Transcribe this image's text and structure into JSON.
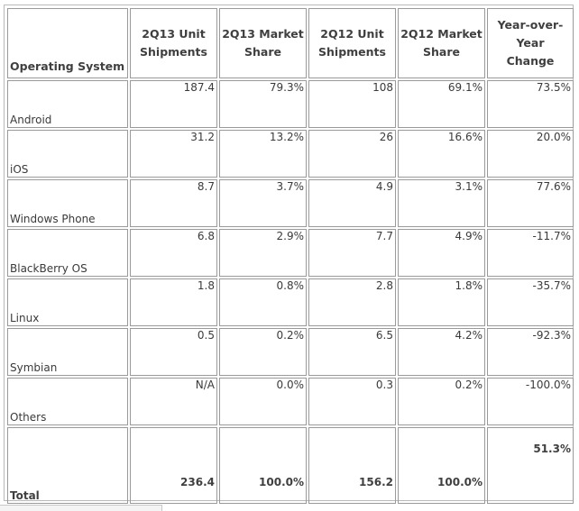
{
  "table": {
    "headers": {
      "os": "Operating System",
      "q2_2013_shipments": [
        "2Q13 Unit",
        "Shipments"
      ],
      "q2_2013_share": [
        "2Q13 Market",
        "Share"
      ],
      "q2_2012_shipments": [
        "2Q12 Unit",
        "Shipments"
      ],
      "q2_2012_share": [
        "2Q12 Market",
        "Share"
      ],
      "yoy_change": [
        "Year-over-Year",
        "Change"
      ]
    },
    "rows": [
      {
        "os": "Android",
        "s13": "187.4",
        "m13": "79.3%",
        "s12": "108",
        "m12": "69.1%",
        "yoy": "73.5%"
      },
      {
        "os": "iOS",
        "s13": "31.2",
        "m13": "13.2%",
        "s12": "26",
        "m12": "16.6%",
        "yoy": "20.0%"
      },
      {
        "os": "Windows Phone",
        "s13": "8.7",
        "m13": "3.7%",
        "s12": "4.9",
        "m12": "3.1%",
        "yoy": "77.6%"
      },
      {
        "os": "BlackBerry OS",
        "s13": "6.8",
        "m13": "2.9%",
        "s12": "7.7",
        "m12": "4.9%",
        "yoy": "-11.7%"
      },
      {
        "os": "Linux",
        "s13": "1.8",
        "m13": "0.8%",
        "s12": "2.8",
        "m12": "1.8%",
        "yoy": "-35.7%"
      },
      {
        "os": "Symbian",
        "s13": "0.5",
        "m13": "0.2%",
        "s12": "6.5",
        "m12": "4.2%",
        "yoy": "-92.3%"
      },
      {
        "os": "Others",
        "s13": "N/A",
        "m13": "0.0%",
        "s12": "0.3",
        "m12": "0.2%",
        "yoy": "-100.0%"
      }
    ],
    "total": {
      "os": "Total",
      "s13": "236.4",
      "m13": "100.0%",
      "s12": "156.2",
      "m12": "100.0%",
      "yoy": "51.3%"
    }
  }
}
